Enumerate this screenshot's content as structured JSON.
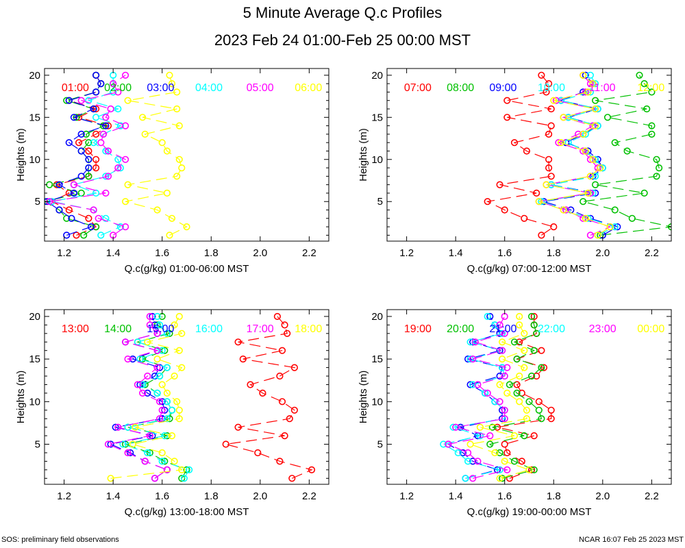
{
  "title": "5 Minute Average Q.c Profiles",
  "subtitle": "2023 Feb 24 01:00-Feb 25 00:00 MST",
  "footer_left": "SOS: preliminary field observations",
  "footer_right": "NCAR 16:07 Feb 25 2023 MST",
  "heights": [
    1,
    2,
    3,
    4,
    5,
    6,
    7,
    8,
    9,
    10,
    11,
    12,
    13,
    14,
    15,
    16,
    17,
    18,
    19,
    20
  ],
  "colors": [
    "#ff0000",
    "#00c000",
    "#0000ff",
    "#00ffff",
    "#ff00ff",
    "#ffff00"
  ],
  "chart_data": [
    {
      "type": "line",
      "xlabel": "Q.c(g/kg) 01:00-06:00 MST",
      "ylabel": "Heights (m)",
      "xlim": [
        1.12,
        2.28
      ],
      "ylim": [
        0.3,
        20.8
      ],
      "xticks": [
        "1.2",
        "1.4",
        "1.6",
        "1.8",
        "2.0",
        "2.2"
      ],
      "yticks": [
        "5",
        "10",
        "15",
        "20"
      ],
      "series": [
        {
          "name": "01:00",
          "values": [
            1.25,
            1.33,
            1.3,
            1.22,
            1.15,
            1.22,
            1.17,
            1.3,
            1.33,
            1.33,
            1.3,
            1.26,
            1.33,
            1.38,
            1.26,
            1.33,
            1.22,
            1.33,
            1.35,
            1.33
          ]
        },
        {
          "name": "02:00",
          "values": [
            1.28,
            1.33,
            1.21,
            1.18,
            1.12,
            1.27,
            1.14,
            1.3,
            1.3,
            1.3,
            1.27,
            1.3,
            1.29,
            1.36,
            1.25,
            1.32,
            1.21,
            1.33,
            1.35,
            1.33
          ]
        },
        {
          "name": "03:00",
          "values": [
            1.21,
            1.31,
            1.23,
            1.18,
            1.13,
            1.24,
            1.18,
            1.27,
            1.3,
            1.3,
            1.27,
            1.22,
            1.27,
            1.37,
            1.24,
            1.32,
            1.22,
            1.33,
            1.35,
            1.33
          ]
        },
        {
          "name": "04:00",
          "values": [
            1.35,
            1.43,
            1.37,
            1.32,
            1.15,
            1.33,
            1.24,
            1.37,
            1.43,
            1.42,
            1.37,
            1.32,
            1.36,
            1.43,
            1.33,
            1.42,
            1.3,
            1.4,
            1.4,
            1.4
          ]
        },
        {
          "name": "05:00",
          "values": [
            1.4,
            1.45,
            1.34,
            1.32,
            1.14,
            1.37,
            1.24,
            1.38,
            1.42,
            1.45,
            1.38,
            1.35,
            1.36,
            1.45,
            1.37,
            1.39,
            1.27,
            1.42,
            1.4,
            1.45
          ]
        },
        {
          "name": "06:00",
          "values": [
            1.63,
            1.7,
            1.64,
            1.58,
            1.45,
            1.62,
            1.46,
            1.66,
            1.68,
            1.67,
            1.62,
            1.6,
            1.53,
            1.67,
            1.52,
            1.66,
            1.46,
            1.66,
            1.64,
            1.63
          ]
        }
      ]
    },
    {
      "type": "line",
      "xlabel": "Q.c(g/kg) 07:00-12:00 MST",
      "ylabel": "Heights (m)",
      "xlim": [
        1.12,
        2.28
      ],
      "ylim": [
        0.3,
        20.8
      ],
      "xticks": [
        "1.2",
        "1.4",
        "1.6",
        "1.8",
        "2.0",
        "2.2"
      ],
      "yticks": [
        "5",
        "10",
        "15",
        "20"
      ],
      "series": [
        {
          "name": "07:00",
          "values": [
            1.75,
            1.8,
            1.68,
            1.6,
            1.53,
            1.73,
            1.58,
            1.79,
            1.78,
            1.78,
            1.69,
            1.64,
            1.78,
            1.79,
            1.61,
            1.79,
            1.61,
            1.77,
            1.78,
            1.75
          ]
        },
        {
          "name": "08:00",
          "values": [
            1.99,
            2.28,
            2.12,
            2.05,
            1.92,
            2.17,
            1.97,
            2.22,
            2.23,
            2.22,
            2.1,
            2.05,
            2.2,
            2.2,
            2.02,
            2.18,
            1.97,
            2.2,
            2.17,
            2.15
          ]
        },
        {
          "name": "09:00",
          "values": [
            2.0,
            2.06,
            1.95,
            1.87,
            1.76,
            1.97,
            1.79,
            1.96,
            2.0,
            1.98,
            1.94,
            1.85,
            1.92,
            1.98,
            1.86,
            1.98,
            1.83,
            1.92,
            1.96,
            1.93
          ]
        },
        {
          "name": "10:00",
          "values": [
            1.98,
            2.05,
            1.94,
            1.85,
            1.75,
            1.96,
            1.79,
            1.97,
            2.0,
            1.97,
            1.93,
            1.86,
            1.93,
            1.98,
            1.86,
            1.98,
            1.83,
            1.95,
            1.97,
            1.95
          ]
        },
        {
          "name": "11:00",
          "values": [
            1.95,
            2.03,
            1.92,
            1.85,
            1.74,
            1.95,
            1.77,
            1.95,
            1.98,
            1.95,
            1.92,
            1.82,
            1.9,
            1.96,
            1.84,
            1.97,
            1.81,
            1.93,
            1.95,
            1.92
          ]
        },
        {
          "name": "12:00",
          "values": [
            1.98,
            2.03,
            1.93,
            1.84,
            1.74,
            1.94,
            1.77,
            1.95,
            1.99,
            1.96,
            1.93,
            1.83,
            1.92,
            1.97,
            1.84,
            1.97,
            1.8,
            1.94,
            1.96,
            1.92
          ]
        }
      ]
    },
    {
      "type": "line",
      "xlabel": "Q.c(g/kg) 13:00-18:00 MST",
      "ylabel": "Heights (m)",
      "xlim": [
        1.12,
        2.28
      ],
      "ylim": [
        0.3,
        20.8
      ],
      "xticks": [
        "1.2",
        "1.4",
        "1.6",
        "1.8",
        "2.0",
        "2.2"
      ],
      "yticks": [
        "5",
        "10",
        "15",
        "20"
      ],
      "series": [
        {
          "name": "13:00",
          "values": [
            2.13,
            2.21,
            2.08,
            1.99,
            1.86,
            2.1,
            1.91,
            2.12,
            2.14,
            2.09,
            2.01,
            1.96,
            2.08,
            2.14,
            1.93,
            2.09,
            1.91,
            2.11,
            2.1,
            2.07
          ]
        },
        {
          "name": "14:00",
          "values": [
            1.68,
            1.7,
            1.61,
            1.55,
            1.45,
            1.62,
            1.46,
            1.63,
            1.64,
            1.62,
            1.58,
            1.53,
            1.59,
            1.62,
            1.52,
            1.61,
            1.5,
            1.63,
            1.58,
            1.6
          ]
        },
        {
          "name": "15:00",
          "values": [
            1.57,
            1.62,
            1.53,
            1.47,
            1.39,
            1.56,
            1.41,
            1.6,
            1.61,
            1.6,
            1.54,
            1.51,
            1.57,
            1.59,
            1.48,
            1.58,
            1.45,
            1.58,
            1.57,
            1.56
          ]
        },
        {
          "name": "16:00",
          "values": [
            1.69,
            1.71,
            1.6,
            1.54,
            1.44,
            1.61,
            1.46,
            1.62,
            1.64,
            1.62,
            1.58,
            1.52,
            1.59,
            1.62,
            1.51,
            1.6,
            1.5,
            1.62,
            1.59,
            1.58
          ]
        },
        {
          "name": "17:00",
          "values": [
            1.57,
            1.62,
            1.53,
            1.46,
            1.38,
            1.55,
            1.42,
            1.59,
            1.6,
            1.59,
            1.52,
            1.5,
            1.54,
            1.58,
            1.46,
            1.58,
            1.45,
            1.58,
            1.55,
            1.55
          ]
        },
        {
          "name": "18:00",
          "values": [
            1.39,
            1.68,
            1.65,
            1.6,
            1.48,
            1.64,
            1.49,
            1.67,
            1.67,
            1.66,
            1.62,
            1.6,
            1.65,
            1.68,
            1.58,
            1.67,
            1.54,
            1.68,
            1.65,
            1.67
          ]
        }
      ]
    },
    {
      "type": "line",
      "xlabel": "Q.c(g/kg) 19:00-00:00 MST",
      "ylabel": "Heights (m)",
      "xlim": [
        1.12,
        2.28
      ],
      "ylim": [
        0.3,
        20.8
      ],
      "xticks": [
        "1.2",
        "1.4",
        "1.6",
        "1.8",
        "2.0",
        "2.2"
      ],
      "yticks": [
        "5",
        "10",
        "15",
        "20"
      ],
      "series": [
        {
          "name": "19:00",
          "values": [
            1.62,
            1.71,
            1.67,
            1.61,
            1.6,
            1.72,
            1.57,
            1.79,
            1.79,
            1.74,
            1.67,
            1.65,
            1.73,
            1.76,
            1.65,
            1.75,
            1.66,
            1.73,
            1.72,
            1.72
          ]
        },
        {
          "name": "20:00",
          "values": [
            1.59,
            1.72,
            1.64,
            1.58,
            1.54,
            1.68,
            1.55,
            1.75,
            1.74,
            1.7,
            1.65,
            1.62,
            1.71,
            1.75,
            1.65,
            1.72,
            1.64,
            1.73,
            1.72,
            1.71
          ]
        },
        {
          "name": "21:00",
          "values": [
            1.44,
            1.57,
            1.47,
            1.43,
            1.37,
            1.49,
            1.42,
            1.59,
            1.59,
            1.56,
            1.52,
            1.46,
            1.58,
            1.59,
            1.45,
            1.58,
            1.47,
            1.58,
            1.56,
            1.54
          ]
        },
        {
          "name": "22:00",
          "values": [
            1.44,
            1.58,
            1.45,
            1.41,
            1.35,
            1.5,
            1.39,
            1.6,
            1.6,
            1.56,
            1.52,
            1.47,
            1.6,
            1.59,
            1.46,
            1.59,
            1.46,
            1.59,
            1.56,
            1.53
          ]
        },
        {
          "name": "23:00",
          "values": [
            1.47,
            1.61,
            1.49,
            1.45,
            1.37,
            1.54,
            1.4,
            1.6,
            1.6,
            1.58,
            1.53,
            1.49,
            1.6,
            1.61,
            1.47,
            1.59,
            1.48,
            1.6,
            1.58,
            1.6
          ]
        },
        {
          "name": "00:00",
          "values": [
            1.58,
            1.7,
            1.6,
            1.56,
            1.46,
            1.64,
            1.5,
            1.69,
            1.69,
            1.66,
            1.61,
            1.58,
            1.66,
            1.68,
            1.59,
            1.68,
            1.59,
            1.68,
            1.66,
            1.66
          ]
        }
      ]
    }
  ]
}
